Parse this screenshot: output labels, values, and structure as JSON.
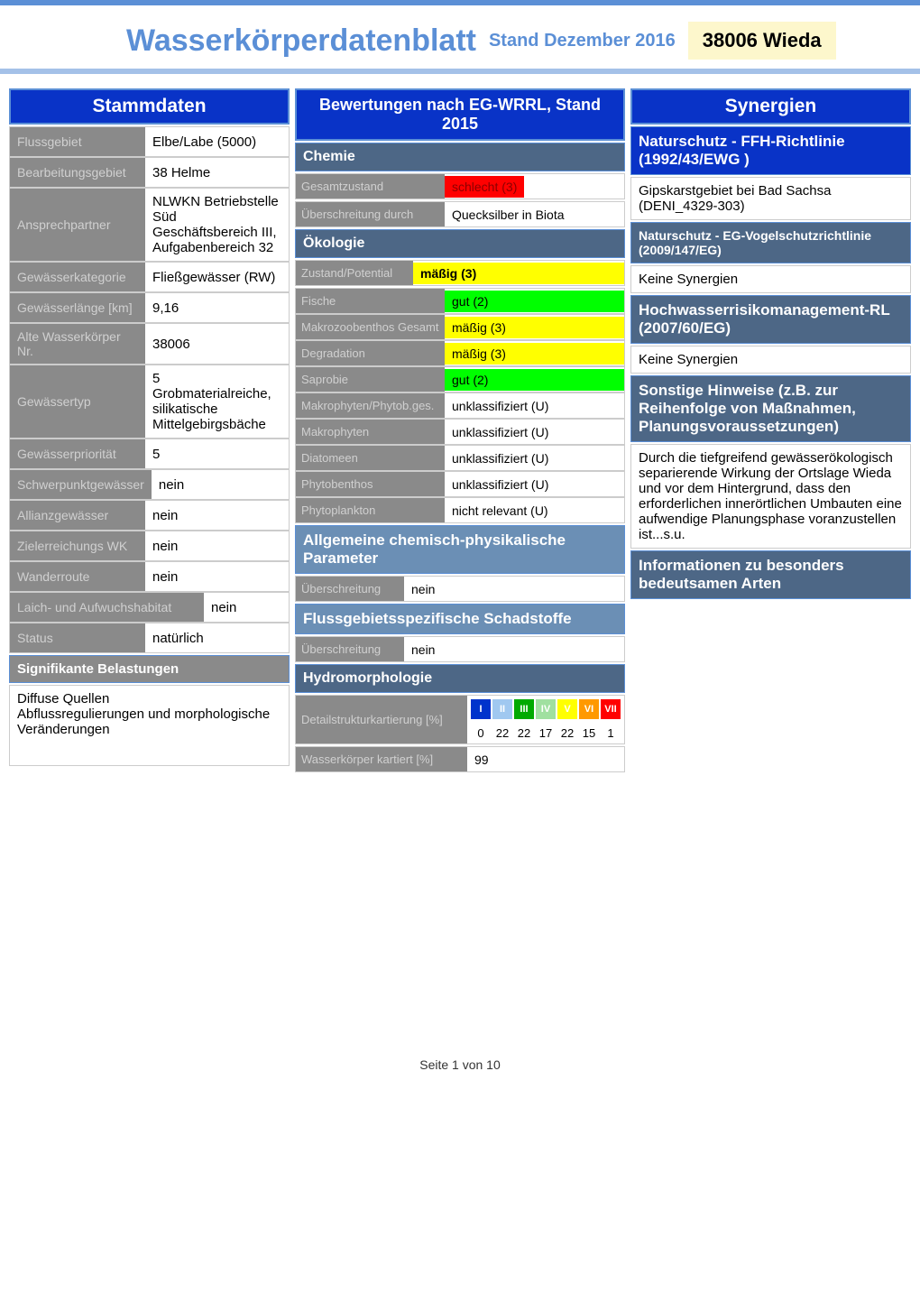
{
  "header": {
    "title": "Wasserkörperdatenblatt",
    "subtitle": "Stand Dezember 2016",
    "code": "38006 Wieda"
  },
  "stammdaten": {
    "title": "Stammdaten",
    "rows": [
      {
        "label": "Flussgebiet",
        "value": "Elbe/Labe (5000)"
      },
      {
        "label": "Bearbeitungsgebiet",
        "value": "38 Helme"
      },
      {
        "label": "Ansprechpartner",
        "value": "NLWKN Betriebstelle Süd Geschäftsbereich III, Aufgabenbereich 32"
      },
      {
        "label": "Gewässerkategorie",
        "value": "Fließgewässer (RW)"
      },
      {
        "label": "Gewässerlänge [km]",
        "value": "9,16"
      },
      {
        "label": "Alte Wasserkörper Nr.",
        "value": "38006"
      },
      {
        "label": "Gewässertyp",
        "value": "5 Grobmaterialreiche, silikatische Mittelgebirgsbäche"
      },
      {
        "label": "Gewässerpriorität",
        "value": "5"
      },
      {
        "label": "Schwerpunktgewässer",
        "value": "nein"
      },
      {
        "label": "Allianzgewässer",
        "value": "nein"
      },
      {
        "label": "Zielerreichungs WK",
        "value": "nein"
      },
      {
        "label": "Wanderroute",
        "value": "nein"
      },
      {
        "label": "Laich- und Aufwuchshabitat",
        "value": "nein"
      },
      {
        "label": "Status",
        "value": "natürlich"
      }
    ],
    "belastungen": {
      "title": "Signifikante Belastungen",
      "text": "Diffuse Quellen\nAbflussregulierungen und morphologische Veränderungen"
    }
  },
  "bewertungen": {
    "title": "Bewertungen nach EG-WRRL, Stand 2015",
    "chemie": {
      "title": "Chemie",
      "gesamtzustand": {
        "label": "Gesamtzustand",
        "value": "schlecht (3)",
        "color": "#ff0000",
        "textcolor": "#660000"
      },
      "ueberschreitung": {
        "label": "Überschreitung durch",
        "value": "Quecksilber in Biota"
      }
    },
    "oekologie": {
      "title": "Ökologie",
      "zustand": {
        "label": "Zustand/Potential",
        "value": "mäßig (3)",
        "color": "#ffff00"
      },
      "rows": [
        {
          "label": "Fische",
          "value": "gut (2)",
          "color": "#00ff00"
        },
        {
          "label": "Makrozoobenthos Gesamt",
          "value": "mäßig (3)",
          "color": "#ffff00"
        },
        {
          "label": "Degradation",
          "value": "mäßig (3)",
          "color": "#ffff00"
        },
        {
          "label": "Saprobie",
          "value": "gut (2)",
          "color": "#00ff00"
        },
        {
          "label": "Makrophyten/Phytob.ges.",
          "value": "unklassifiziert (U)",
          "color": ""
        },
        {
          "label": "Makrophyten",
          "value": "unklassifiziert (U)",
          "color": ""
        },
        {
          "label": "Diatomeen",
          "value": "unklassifiziert (U)",
          "color": ""
        },
        {
          "label": "Phytobenthos",
          "value": "unklassifiziert (U)",
          "color": ""
        },
        {
          "label": "Phytoplankton",
          "value": "nicht relevant (U)",
          "color": ""
        }
      ]
    },
    "allgemeine": {
      "title": "Allgemeine chemisch-physikalische Parameter",
      "ueberschreitung": {
        "label": "Überschreitung",
        "value": "nein"
      }
    },
    "flussgebiet": {
      "title": "Flussgebietsspezifische Schadstoffe",
      "ueberschreitung": {
        "label": "Überschreitung",
        "value": "nein"
      }
    },
    "hydro": {
      "title": "Hydromorphologie",
      "detail_label": "Detailstrukturkartierung [%]",
      "classes": [
        {
          "roman": "I",
          "color": "#0033cc",
          "value": "0"
        },
        {
          "roman": "II",
          "color": "#a0c8f0",
          "value": "22"
        },
        {
          "roman": "III",
          "color": "#00aa00",
          "value": "22"
        },
        {
          "roman": "IV",
          "color": "#a0e0a0",
          "value": "17"
        },
        {
          "roman": "V",
          "color": "#ffff00",
          "value": "22"
        },
        {
          "roman": "VI",
          "color": "#ff9900",
          "value": "15"
        },
        {
          "roman": "VII",
          "color": "#ff0000",
          "value": "1"
        }
      ],
      "kartiert": {
        "label": "Wasserkörper kartiert [%]",
        "value": "99"
      }
    }
  },
  "synergien": {
    "title": "Synergien",
    "ffh": {
      "title": "Naturschutz - FFH-Richtlinie (1992/43/EWG )",
      "text": "Gipskarstgebiet bei Bad Sachsa (DENI_4329-303)"
    },
    "vogel": {
      "title": "Naturschutz - EG-Vogelschutzrichtlinie (2009/147/EG)",
      "text": "Keine Synergien"
    },
    "hochwasser": {
      "title": "Hochwasserrisikomanagement-RL (2007/60/EG)",
      "text": "Keine Synergien"
    },
    "hinweise": {
      "title": "Sonstige Hinweise (z.B. zur Reihenfolge von Maßnahmen, Planungsvoraussetzungen)",
      "text": "Durch die tiefgreifend gewässerökologisch separierende Wirkung der Ortslage Wieda und vor dem Hintergrund, dass den erforderlichen innerörtlichen Umbauten eine aufwendige Planungsphase voranzustellen ist...s.u."
    },
    "arten": {
      "title": "Informationen zu besonders bedeutsamen Arten"
    }
  },
  "footer": "Seite 1 von 10"
}
